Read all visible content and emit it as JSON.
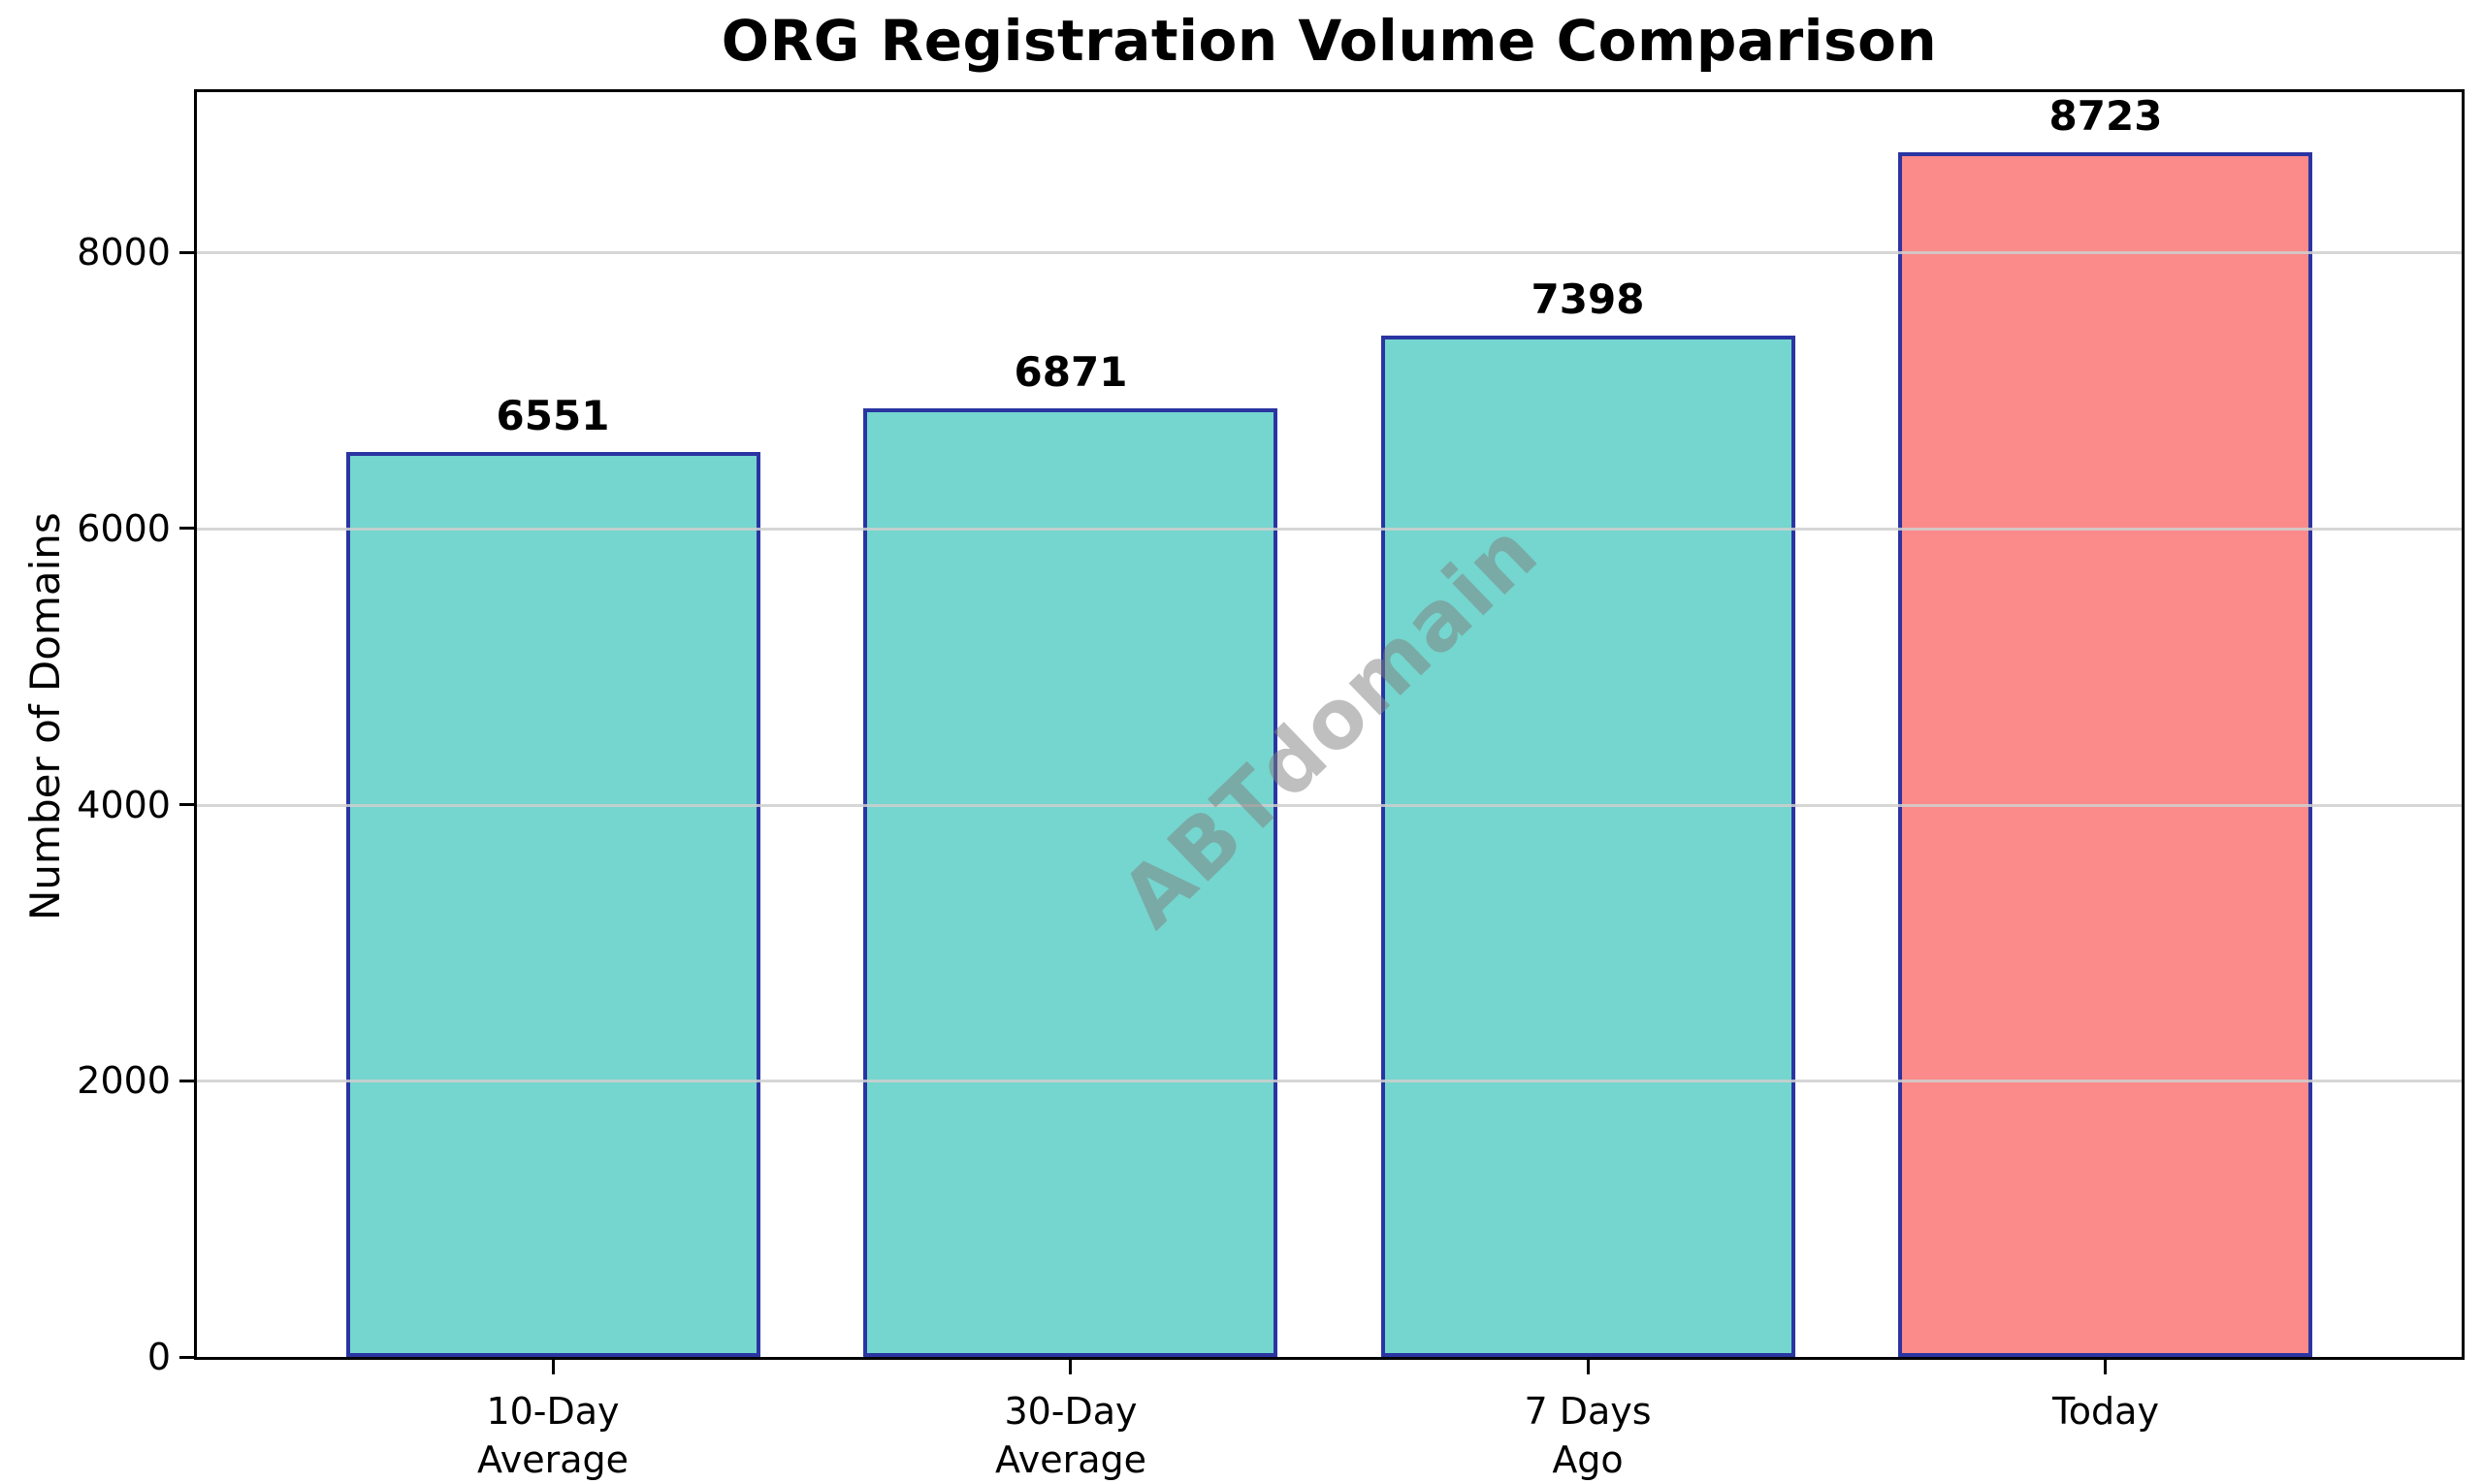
{
  "chart_data": {
    "type": "bar",
    "title": "ORG Registration Volume Comparison",
    "ylabel": "Number of Domains",
    "xlabel": "",
    "categories": [
      "10-Day\nAverage",
      "30-Day\nAverage",
      "7 Days\nAgo",
      "Today"
    ],
    "values": [
      6551,
      6871,
      7398,
      8723
    ],
    "bar_labels": [
      "6551",
      "6871",
      "7398",
      "8723"
    ],
    "yticks": [
      0,
      2000,
      4000,
      6000,
      8000
    ],
    "ylim": [
      0,
      9160
    ],
    "grid": "horizontal-only",
    "legend_position": "none",
    "watermark": "ABTdomain",
    "colors": {
      "bar_fills": [
        "#74D6CE",
        "#74D6CE",
        "#74D6CE",
        "#FB8A8A"
      ],
      "bar_edge": "#2A35A2",
      "grid": "#CFCFCF",
      "text": "#000000",
      "watermark": "#808080",
      "background": "#FFFFFF"
    }
  }
}
